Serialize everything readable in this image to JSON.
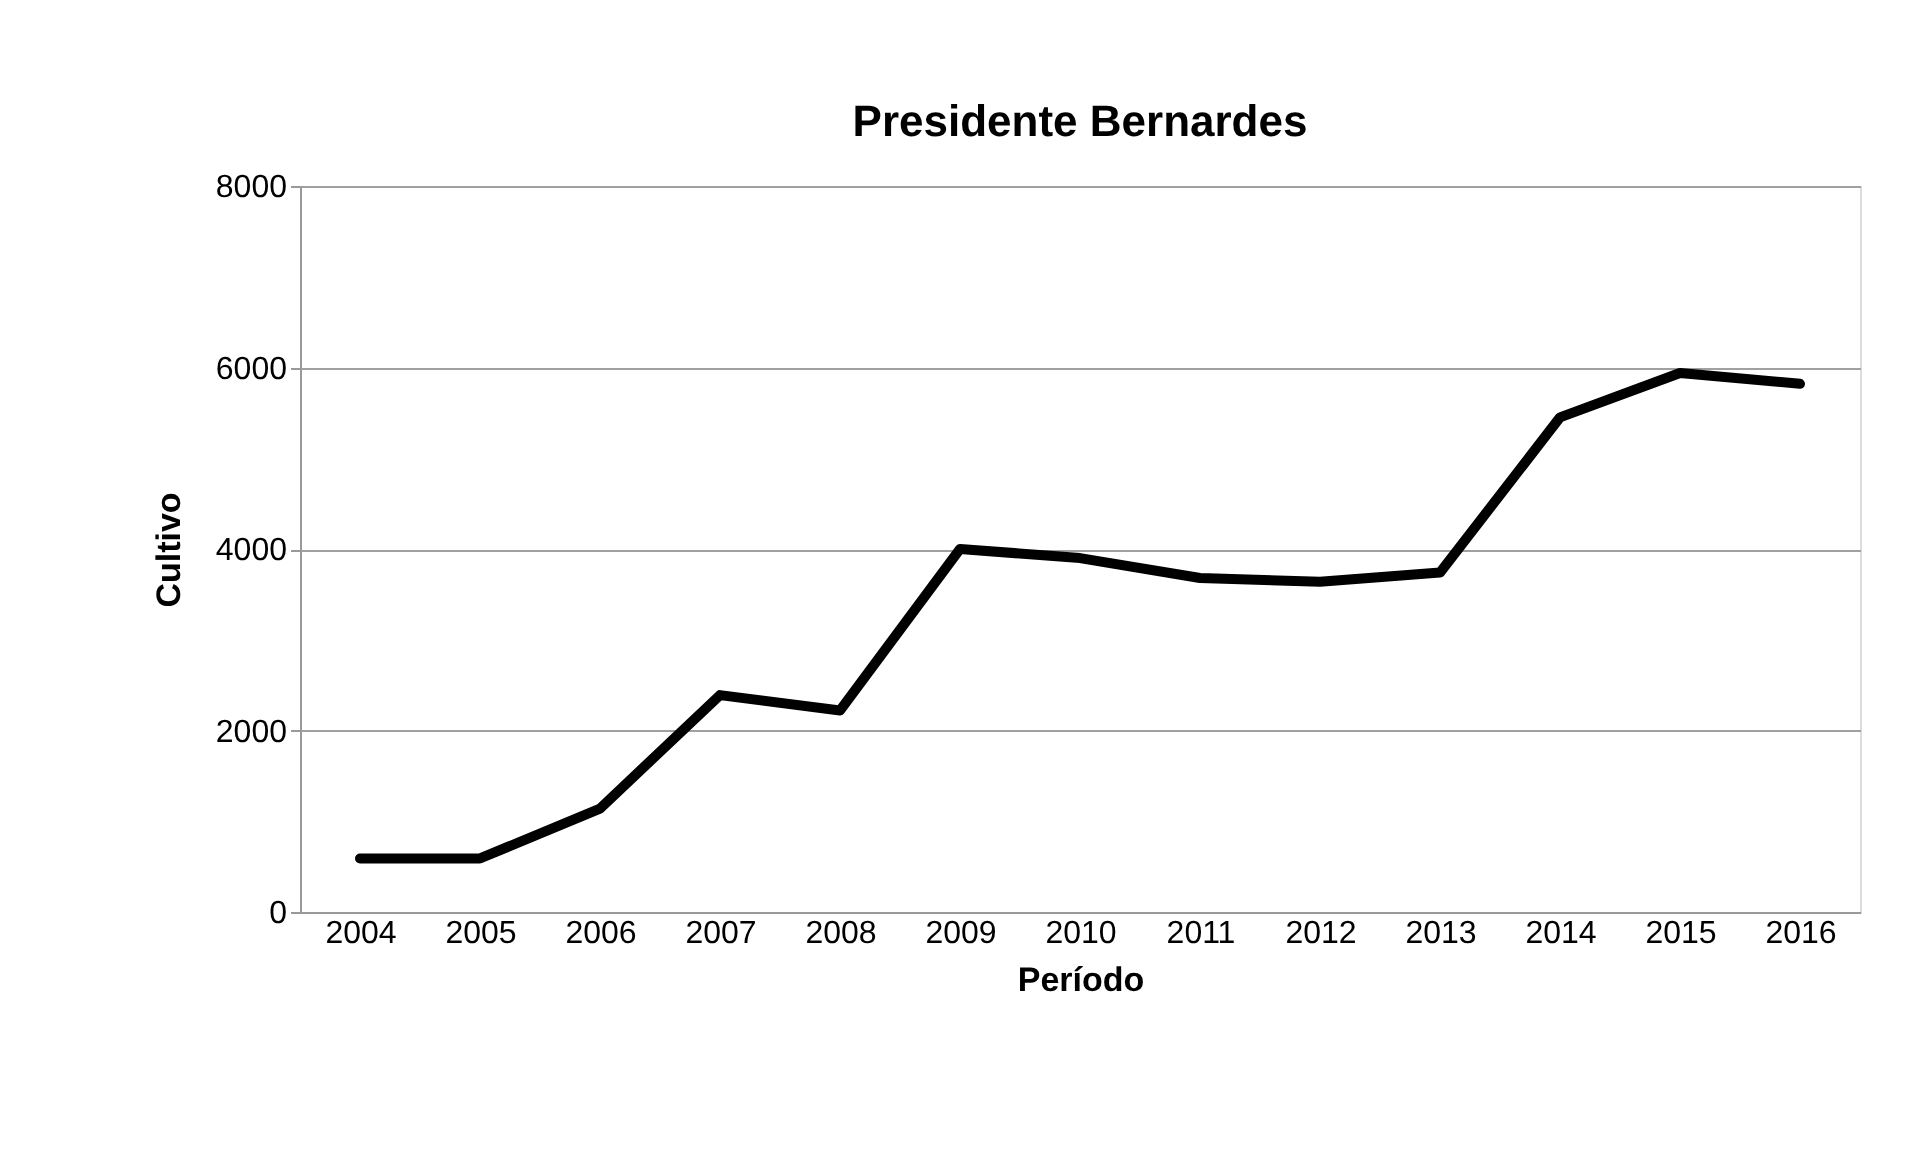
{
  "chart_data": {
    "type": "line",
    "title": "Presidente Bernardes",
    "xlabel": "Período",
    "ylabel": "Cultivo",
    "categories": [
      "2004",
      "2005",
      "2006",
      "2007",
      "2008",
      "2009",
      "2010",
      "2011",
      "2012",
      "2013",
      "2014",
      "2015",
      "2016"
    ],
    "series": [
      {
        "color": "#000000",
        "values": [
          590,
          590,
          1140,
          2390,
          2220,
          4000,
          3900,
          3680,
          3640,
          3740,
          5450,
          5940,
          5820
        ]
      }
    ],
    "ylim": [
      0,
      8000
    ],
    "yticks": [
      0,
      2000,
      4000,
      6000,
      8000
    ],
    "grid": "y",
    "legend": false,
    "marker": "none",
    "line_style": "solid"
  }
}
